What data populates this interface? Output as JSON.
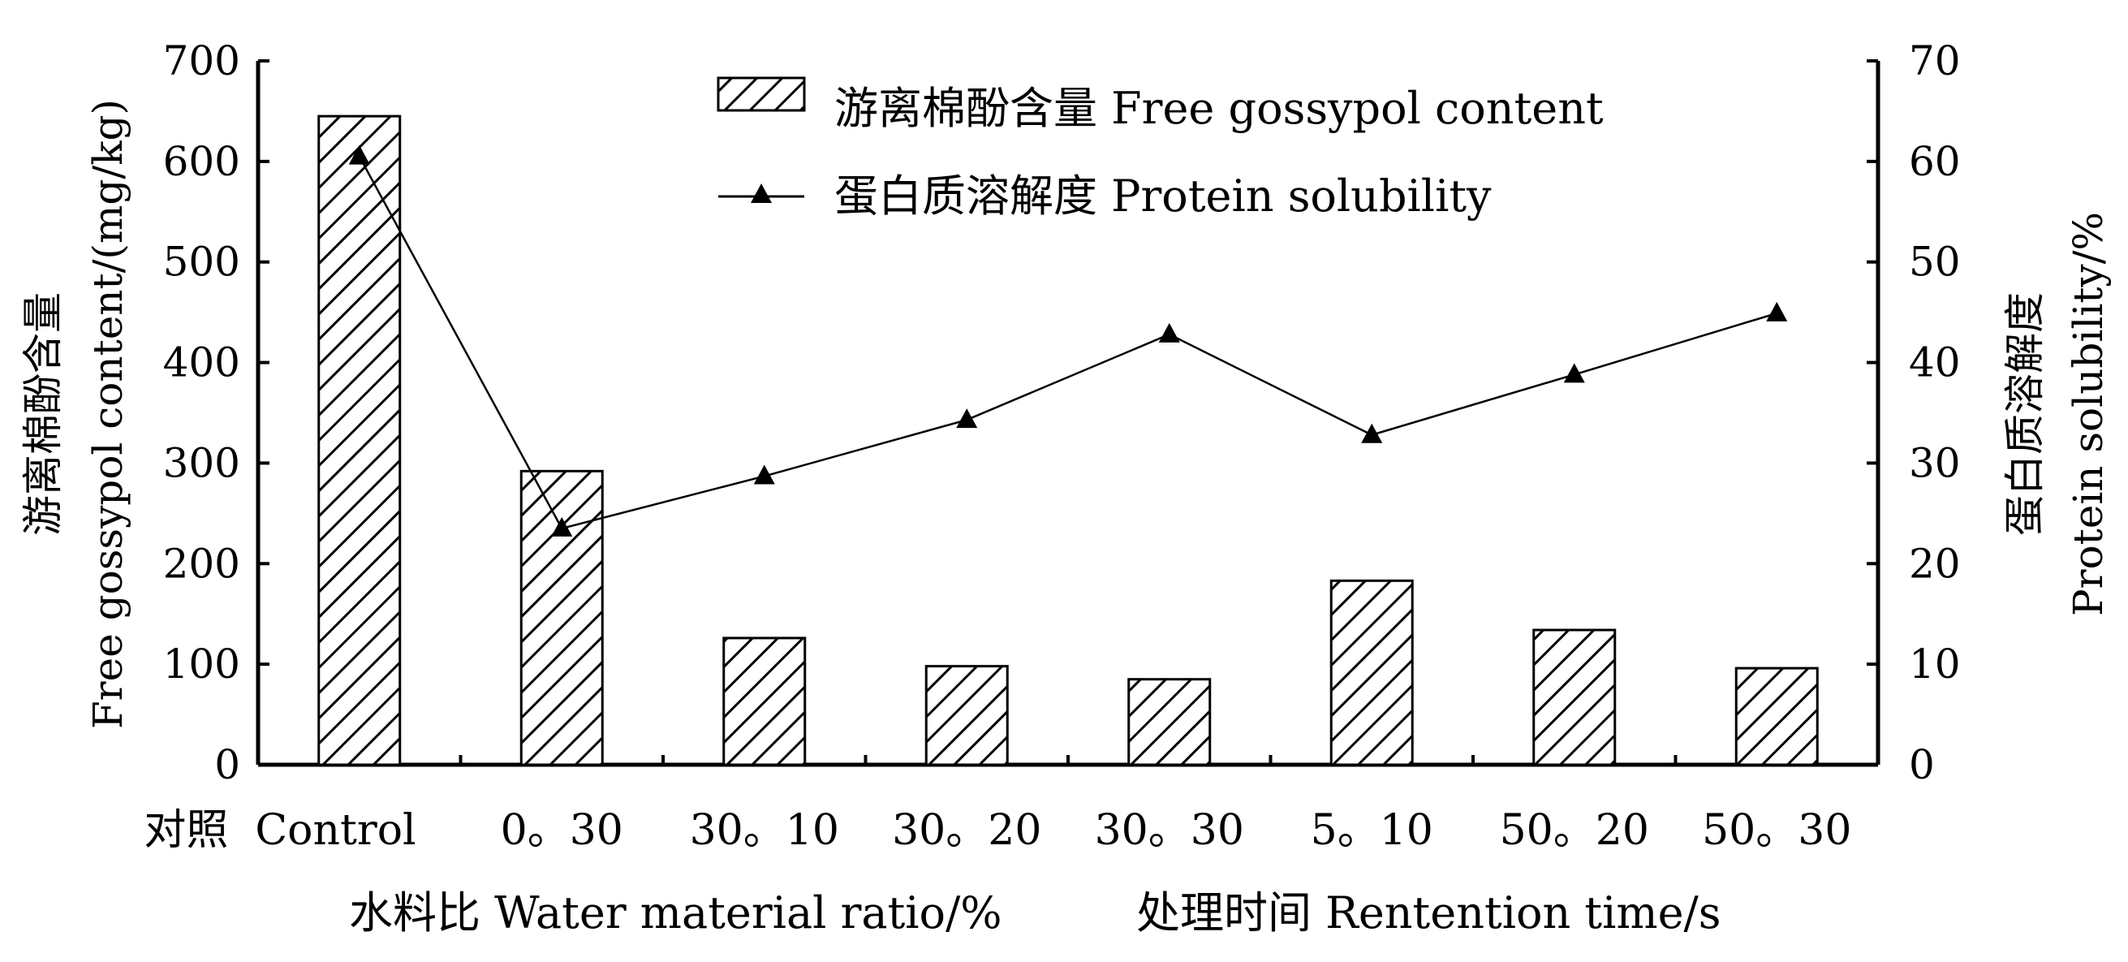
{
  "chart_data": {
    "type": "bar",
    "categories": [
      "对照  Control",
      "0。30",
      "30。10",
      "30。20",
      "30。30",
      "5。10",
      "50。20",
      "50。30"
    ],
    "series": [
      {
        "name": "游离棉酚含量  Free gossypol content",
        "type": "bar",
        "axis": "left",
        "values": [
          645,
          292,
          126,
          98,
          85,
          183,
          134,
          96
        ]
      },
      {
        "name": "蛋白质溶解度  Protein solubility",
        "type": "line",
        "axis": "right",
        "values": [
          60.5,
          23.5,
          28.7,
          34.3,
          42.8,
          32.8,
          38.8,
          44.9
        ]
      }
    ],
    "y_left": {
      "label_cn": "游离棉酚含量",
      "label_en": "Free gossypol content/(mg/kg)",
      "range": [
        0,
        700
      ],
      "ticks": [
        "0",
        "100",
        "200",
        "300",
        "400",
        "500",
        "600",
        "700"
      ]
    },
    "y_right": {
      "label_cn": "蛋白质溶解度",
      "label_en": "Protein solubility/%",
      "range": [
        0,
        70
      ],
      "ticks": [
        "0",
        "10",
        "20",
        "30",
        "40",
        "50",
        "60",
        "70"
      ]
    },
    "x_groups": {
      "water_ratio": "水料比  Water material ratio/%",
      "retention_time": "处理时间  Rentention time/s"
    },
    "legend_position": "top-center",
    "grid": false,
    "colors": {
      "bar_fill": "hatched",
      "line": "#000000"
    }
  }
}
